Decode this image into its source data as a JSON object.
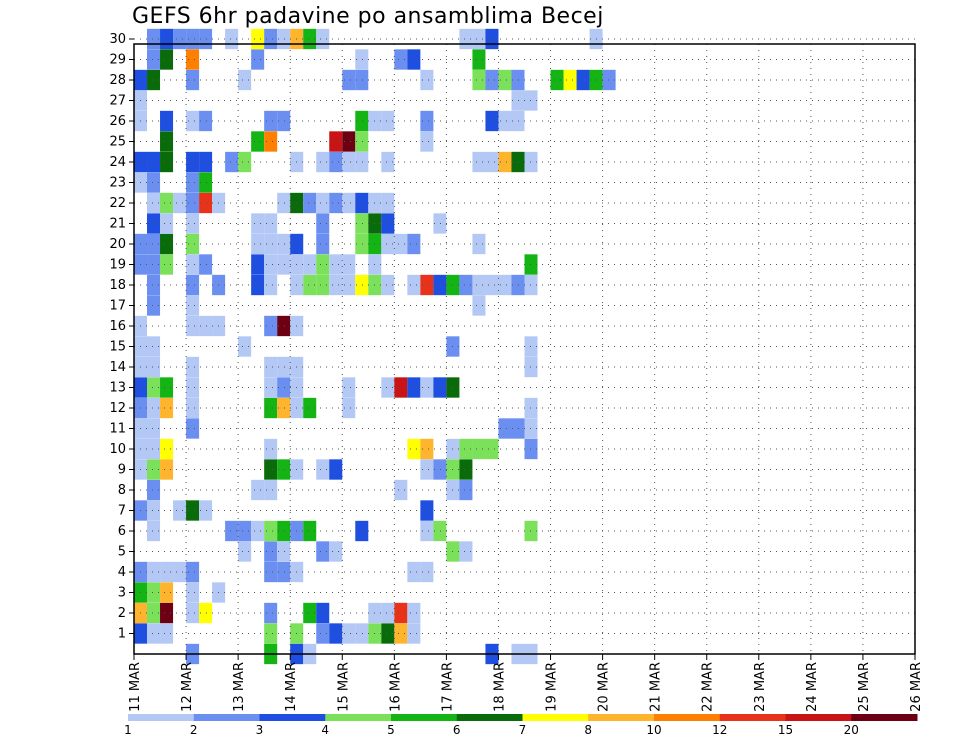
{
  "chart_data": {
    "type": "heatmap",
    "title": "GEFS 6hr padavine po ansamblima Becej",
    "xlabel": "",
    "ylabel": "",
    "x_tick_labels": [
      "11 MAR",
      "12 MAR",
      "13 MAR",
      "14 MAR",
      "15 MAR",
      "16 MAR",
      "17 MAR",
      "18 MAR",
      "19 MAR",
      "20 MAR",
      "21 MAR",
      "22 MAR",
      "23 MAR",
      "24 MAR",
      "25 MAR",
      "26 MAR"
    ],
    "y_tick_labels": [
      "1",
      "2",
      "3",
      "4",
      "5",
      "6",
      "7",
      "8",
      "9",
      "10",
      "11",
      "12",
      "13",
      "14",
      "15",
      "16",
      "17",
      "18",
      "19",
      "20",
      "21",
      "22",
      "23",
      "24",
      "25",
      "26",
      "27",
      "28",
      "29",
      "30"
    ],
    "xlim_days": [
      11,
      26
    ],
    "ylim_members": [
      0,
      30
    ],
    "grid": true,
    "legend_position": "bottom",
    "legend_levels": [
      "1",
      "2",
      "3",
      "4",
      "5",
      "6",
      "7",
      "8",
      "10",
      "12",
      "15",
      "20"
    ],
    "legend_colors": [
      "#b3c8f5",
      "#6b8ff0",
      "#1e4fe0",
      "#7be05a",
      "#15b415",
      "#0a6b0a",
      "#ffff00",
      "#ffb42e",
      "#ff7f00",
      "#e8321a",
      "#c81414",
      "#6e0014"
    ],
    "cells_note": "each cell: [member, step_index (6h steps from 11 MAR 00Z), precip_mm_6h]",
    "cells": [
      [
        1,
        0,
        3
      ],
      [
        1,
        1,
        1
      ],
      [
        1,
        2,
        1
      ],
      [
        1,
        10,
        4
      ],
      [
        1,
        12,
        4
      ],
      [
        1,
        14,
        2
      ],
      [
        1,
        15,
        3
      ],
      [
        1,
        16,
        1
      ],
      [
        1,
        17,
        1
      ],
      [
        1,
        18,
        4
      ],
      [
        1,
        19,
        6
      ],
      [
        1,
        20,
        8
      ],
      [
        1,
        21,
        1
      ],
      [
        2,
        0,
        8
      ],
      [
        2,
        1,
        4
      ],
      [
        2,
        2,
        20
      ],
      [
        2,
        4,
        1
      ],
      [
        2,
        5,
        7
      ],
      [
        2,
        10,
        2
      ],
      [
        2,
        13,
        5
      ],
      [
        2,
        14,
        3
      ],
      [
        2,
        18,
        1
      ],
      [
        2,
        19,
        1
      ],
      [
        2,
        20,
        12
      ],
      [
        2,
        21,
        1
      ],
      [
        3,
        0,
        5
      ],
      [
        3,
        1,
        4
      ],
      [
        3,
        2,
        8
      ],
      [
        3,
        4,
        1
      ],
      [
        3,
        6,
        1
      ],
      [
        4,
        0,
        2
      ],
      [
        4,
        1,
        1
      ],
      [
        4,
        2,
        1
      ],
      [
        4,
        3,
        1
      ],
      [
        4,
        4,
        2
      ],
      [
        4,
        10,
        2
      ],
      [
        4,
        11,
        2
      ],
      [
        4,
        12,
        1
      ],
      [
        4,
        21,
        1
      ],
      [
        4,
        22,
        1
      ],
      [
        5,
        8,
        1
      ],
      [
        5,
        10,
        2
      ],
      [
        5,
        11,
        1
      ],
      [
        5,
        14,
        2
      ],
      [
        5,
        15,
        1
      ],
      [
        5,
        24,
        4
      ],
      [
        5,
        25,
        1
      ],
      [
        6,
        1,
        1
      ],
      [
        6,
        7,
        2
      ],
      [
        6,
        8,
        2
      ],
      [
        6,
        9,
        1
      ],
      [
        6,
        10,
        4
      ],
      [
        6,
        11,
        5
      ],
      [
        6,
        12,
        2
      ],
      [
        6,
        13,
        5
      ],
      [
        6,
        17,
        3
      ],
      [
        6,
        22,
        1
      ],
      [
        6,
        23,
        4
      ],
      [
        6,
        30,
        4
      ],
      [
        7,
        0,
        2
      ],
      [
        7,
        1,
        1
      ],
      [
        7,
        3,
        1
      ],
      [
        7,
        4,
        6
      ],
      [
        7,
        5,
        1
      ],
      [
        7,
        22,
        3
      ],
      [
        8,
        1,
        2
      ],
      [
        8,
        9,
        1
      ],
      [
        8,
        10,
        1
      ],
      [
        8,
        20,
        1
      ],
      [
        8,
        24,
        1
      ],
      [
        8,
        25,
        2
      ],
      [
        9,
        0,
        1
      ],
      [
        9,
        1,
        4
      ],
      [
        9,
        2,
        8
      ],
      [
        9,
        10,
        6
      ],
      [
        9,
        11,
        5
      ],
      [
        9,
        12,
        1
      ],
      [
        9,
        14,
        1
      ],
      [
        9,
        15,
        3
      ],
      [
        9,
        22,
        1
      ],
      [
        9,
        23,
        2
      ],
      [
        9,
        24,
        4
      ],
      [
        9,
        25,
        6
      ],
      [
        10,
        0,
        1
      ],
      [
        10,
        1,
        1
      ],
      [
        10,
        2,
        7
      ],
      [
        10,
        10,
        1
      ],
      [
        10,
        21,
        7
      ],
      [
        10,
        22,
        8
      ],
      [
        10,
        24,
        1
      ],
      [
        10,
        25,
        4
      ],
      [
        10,
        26,
        4
      ],
      [
        10,
        27,
        4
      ],
      [
        10,
        30,
        2
      ],
      [
        11,
        0,
        1
      ],
      [
        11,
        1,
        1
      ],
      [
        11,
        4,
        2
      ],
      [
        11,
        28,
        2
      ],
      [
        11,
        29,
        2
      ],
      [
        11,
        30,
        1
      ],
      [
        12,
        0,
        2
      ],
      [
        12,
        1,
        1
      ],
      [
        12,
        2,
        8
      ],
      [
        12,
        4,
        1
      ],
      [
        12,
        10,
        5
      ],
      [
        12,
        11,
        8
      ],
      [
        12,
        12,
        1
      ],
      [
        12,
        13,
        5
      ],
      [
        12,
        16,
        1
      ],
      [
        12,
        30,
        1
      ],
      [
        13,
        0,
        3
      ],
      [
        13,
        1,
        4
      ],
      [
        13,
        2,
        5
      ],
      [
        13,
        4,
        1
      ],
      [
        13,
        10,
        1
      ],
      [
        13,
        11,
        2
      ],
      [
        13,
        12,
        1
      ],
      [
        13,
        16,
        1
      ],
      [
        13,
        19,
        1
      ],
      [
        13,
        20,
        15
      ],
      [
        13,
        21,
        3
      ],
      [
        13,
        22,
        1
      ],
      [
        13,
        23,
        3
      ],
      [
        13,
        24,
        6
      ],
      [
        14,
        0,
        1
      ],
      [
        14,
        1,
        1
      ],
      [
        14,
        4,
        1
      ],
      [
        14,
        10,
        1
      ],
      [
        14,
        11,
        1
      ],
      [
        14,
        12,
        1
      ],
      [
        14,
        30,
        1
      ],
      [
        15,
        0,
        1
      ],
      [
        15,
        1,
        1
      ],
      [
        15,
        8,
        1
      ],
      [
        15,
        24,
        2
      ],
      [
        15,
        30,
        1
      ],
      [
        16,
        0,
        1
      ],
      [
        16,
        4,
        1
      ],
      [
        16,
        5,
        1
      ],
      [
        16,
        6,
        1
      ],
      [
        16,
        10,
        2
      ],
      [
        16,
        11,
        20
      ],
      [
        16,
        12,
        1
      ],
      [
        17,
        1,
        2
      ],
      [
        17,
        4,
        1
      ],
      [
        17,
        26,
        1
      ],
      [
        18,
        1,
        2
      ],
      [
        18,
        4,
        2
      ],
      [
        18,
        6,
        2
      ],
      [
        18,
        9,
        3
      ],
      [
        18,
        10,
        1
      ],
      [
        18,
        12,
        1
      ],
      [
        18,
        13,
        4
      ],
      [
        18,
        14,
        4
      ],
      [
        18,
        15,
        1
      ],
      [
        18,
        16,
        1
      ],
      [
        18,
        17,
        7
      ],
      [
        18,
        18,
        4
      ],
      [
        18,
        19,
        1
      ],
      [
        18,
        21,
        1
      ],
      [
        18,
        22,
        12
      ],
      [
        18,
        23,
        3
      ],
      [
        18,
        24,
        5
      ],
      [
        18,
        25,
        2
      ],
      [
        18,
        26,
        1
      ],
      [
        18,
        27,
        1
      ],
      [
        18,
        28,
        1
      ],
      [
        18,
        29,
        2
      ],
      [
        18,
        30,
        1
      ],
      [
        19,
        0,
        2
      ],
      [
        19,
        1,
        2
      ],
      [
        19,
        2,
        4
      ],
      [
        19,
        4,
        1
      ],
      [
        19,
        5,
        2
      ],
      [
        19,
        9,
        3
      ],
      [
        19,
        10,
        1
      ],
      [
        19,
        11,
        1
      ],
      [
        19,
        12,
        1
      ],
      [
        19,
        13,
        1
      ],
      [
        19,
        14,
        4
      ],
      [
        19,
        15,
        1
      ],
      [
        19,
        16,
        1
      ],
      [
        19,
        18,
        1
      ],
      [
        19,
        30,
        5
      ],
      [
        20,
        0,
        2
      ],
      [
        20,
        1,
        2
      ],
      [
        20,
        2,
        6
      ],
      [
        20,
        4,
        4
      ],
      [
        20,
        9,
        1
      ],
      [
        20,
        10,
        1
      ],
      [
        20,
        11,
        1
      ],
      [
        20,
        12,
        3
      ],
      [
        20,
        14,
        2
      ],
      [
        20,
        17,
        4
      ],
      [
        20,
        18,
        5
      ],
      [
        20,
        19,
        1
      ],
      [
        20,
        20,
        1
      ],
      [
        20,
        21,
        2
      ],
      [
        20,
        26,
        1
      ],
      [
        21,
        1,
        3
      ],
      [
        21,
        2,
        1
      ],
      [
        21,
        4,
        1
      ],
      [
        21,
        9,
        1
      ],
      [
        21,
        10,
        1
      ],
      [
        21,
        14,
        2
      ],
      [
        21,
        17,
        4
      ],
      [
        21,
        18,
        6
      ],
      [
        21,
        19,
        3
      ],
      [
        21,
        23,
        1
      ],
      [
        22,
        1,
        1
      ],
      [
        22,
        2,
        4
      ],
      [
        22,
        3,
        1
      ],
      [
        22,
        4,
        2
      ],
      [
        22,
        5,
        12
      ],
      [
        22,
        6,
        1
      ],
      [
        22,
        11,
        1
      ],
      [
        22,
        12,
        6
      ],
      [
        22,
        13,
        2
      ],
      [
        22,
        14,
        1
      ],
      [
        22,
        15,
        2
      ],
      [
        22,
        16,
        1
      ],
      [
        22,
        17,
        3
      ],
      [
        22,
        18,
        1
      ],
      [
        22,
        19,
        1
      ],
      [
        23,
        0,
        1
      ],
      [
        23,
        1,
        2
      ],
      [
        23,
        4,
        2
      ],
      [
        23,
        5,
        5
      ],
      [
        24,
        0,
        3
      ],
      [
        24,
        1,
        3
      ],
      [
        24,
        2,
        6
      ],
      [
        24,
        4,
        3
      ],
      [
        24,
        5,
        3
      ],
      [
        24,
        7,
        2
      ],
      [
        24,
        8,
        4
      ],
      [
        24,
        12,
        1
      ],
      [
        24,
        14,
        1
      ],
      [
        24,
        15,
        2
      ],
      [
        24,
        16,
        1
      ],
      [
        24,
        17,
        1
      ],
      [
        24,
        19,
        1
      ],
      [
        24,
        26,
        1
      ],
      [
        24,
        27,
        1
      ],
      [
        24,
        28,
        8
      ],
      [
        24,
        29,
        6
      ],
      [
        24,
        30,
        1
      ],
      [
        25,
        2,
        6
      ],
      [
        25,
        9,
        5
      ],
      [
        25,
        10,
        10
      ],
      [
        25,
        15,
        15
      ],
      [
        25,
        16,
        20
      ],
      [
        25,
        17,
        4
      ],
      [
        25,
        22,
        1
      ],
      [
        26,
        0,
        1
      ],
      [
        26,
        2,
        3
      ],
      [
        26,
        4,
        1
      ],
      [
        26,
        5,
        2
      ],
      [
        26,
        10,
        2
      ],
      [
        26,
        11,
        2
      ],
      [
        26,
        17,
        5
      ],
      [
        26,
        18,
        1
      ],
      [
        26,
        19,
        1
      ],
      [
        26,
        22,
        2
      ],
      [
        26,
        27,
        3
      ],
      [
        26,
        28,
        1
      ],
      [
        26,
        29,
        1
      ],
      [
        27,
        0,
        1
      ],
      [
        27,
        29,
        1
      ],
      [
        27,
        30,
        1
      ],
      [
        28,
        0,
        3
      ],
      [
        28,
        1,
        6
      ],
      [
        28,
        4,
        2
      ],
      [
        28,
        8,
        1
      ],
      [
        28,
        16,
        2
      ],
      [
        28,
        17,
        2
      ],
      [
        28,
        22,
        1
      ],
      [
        28,
        26,
        4
      ],
      [
        28,
        27,
        2
      ],
      [
        28,
        28,
        4
      ],
      [
        28,
        29,
        2
      ],
      [
        28,
        32,
        5
      ],
      [
        28,
        33,
        7
      ],
      [
        28,
        34,
        3
      ],
      [
        28,
        35,
        5
      ],
      [
        28,
        36,
        2
      ],
      [
        29,
        1,
        2
      ],
      [
        29,
        2,
        6
      ],
      [
        29,
        4,
        10
      ],
      [
        29,
        9,
        2
      ],
      [
        29,
        17,
        1
      ],
      [
        29,
        20,
        2
      ],
      [
        29,
        21,
        3
      ],
      [
        29,
        26,
        5
      ],
      [
        30,
        1,
        2
      ],
      [
        30,
        2,
        3
      ],
      [
        30,
        3,
        2
      ],
      [
        30,
        4,
        2
      ],
      [
        30,
        5,
        2
      ],
      [
        30,
        7,
        1
      ],
      [
        30,
        9,
        7
      ],
      [
        30,
        10,
        2
      ],
      [
        30,
        11,
        1
      ],
      [
        30,
        12,
        8
      ],
      [
        30,
        13,
        5
      ],
      [
        30,
        14,
        1
      ],
      [
        30,
        25,
        1
      ],
      [
        30,
        26,
        1
      ],
      [
        30,
        27,
        3
      ],
      [
        30,
        35,
        1
      ],
      [
        0,
        4,
        2
      ],
      [
        0,
        10,
        5
      ],
      [
        0,
        12,
        3
      ],
      [
        0,
        13,
        1
      ],
      [
        0,
        27,
        3
      ],
      [
        0,
        29,
        1
      ],
      [
        0,
        30,
        1
      ]
    ]
  }
}
